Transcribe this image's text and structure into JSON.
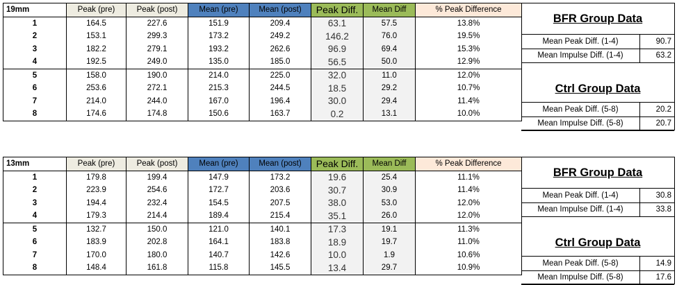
{
  "headers": [
    "Peak (pre)",
    "Peak (post)",
    "Mean (pre)",
    "Mean (post)",
    "Peak Diff.",
    "Mean Diff",
    "% Peak Difference"
  ],
  "tables": [
    {
      "label": "19mm",
      "rows": [
        [
          "1",
          "164.5",
          "227.6",
          "151.9",
          "209.4",
          "63.1",
          "57.5",
          "13.8%"
        ],
        [
          "2",
          "153.1",
          "299.3",
          "173.2",
          "249.2",
          "146.2",
          "76.0",
          "19.5%"
        ],
        [
          "3",
          "182.2",
          "279.1",
          "193.2",
          "262.6",
          "96.9",
          "69.4",
          "15.3%"
        ],
        [
          "4",
          "192.5",
          "249.0",
          "135.0",
          "185.0",
          "56.5",
          "50.0",
          "12.9%"
        ],
        [
          "5",
          "158.0",
          "190.0",
          "214.0",
          "225.0",
          "32.0",
          "11.0",
          "12.0%"
        ],
        [
          "6",
          "253.6",
          "272.1",
          "215.3",
          "244.5",
          "18.5",
          "29.2",
          "10.7%"
        ],
        [
          "7",
          "214.0",
          "244.0",
          "167.0",
          "196.4",
          "30.0",
          "29.4",
          "11.4%"
        ],
        [
          "8",
          "174.6",
          "174.8",
          "150.6",
          "163.7",
          "0.2",
          "13.1",
          "10.0%"
        ]
      ],
      "bfr": {
        "title": "BFR Group Data",
        "peak_label": "Mean Peak Diff. (1-4)",
        "peak_value": "90.7",
        "impulse_label": "Mean Impulse Diff. (1-4)",
        "impulse_value": "63.2"
      },
      "ctrl": {
        "title": "Ctrl Group Data",
        "peak_label": "Mean Peak  Diff. (5-8)",
        "peak_value": "20.2",
        "impulse_label": "Mean Impulse Diff. (5-8)",
        "impulse_value": "20.7"
      }
    },
    {
      "label": "13mm",
      "rows": [
        [
          "1",
          "179.8",
          "199.4",
          "147.9",
          "173.2",
          "19.6",
          "25.4",
          "11.1%"
        ],
        [
          "2",
          "223.9",
          "254.6",
          "172.7",
          "203.6",
          "30.7",
          "30.9",
          "11.4%"
        ],
        [
          "3",
          "194.4",
          "232.4",
          "154.5",
          "207.5",
          "38.0",
          "53.0",
          "12.0%"
        ],
        [
          "4",
          "179.3",
          "214.4",
          "189.4",
          "215.4",
          "35.1",
          "26.0",
          "12.0%"
        ],
        [
          "5",
          "132.7",
          "150.0",
          "121.0",
          "140.1",
          "17.3",
          "19.1",
          "11.3%"
        ],
        [
          "6",
          "183.9",
          "202.8",
          "164.1",
          "183.8",
          "18.9",
          "19.7",
          "11.0%"
        ],
        [
          "7",
          "170.0",
          "180.0",
          "140.7",
          "142.6",
          "10.0",
          "1.9",
          "10.6%"
        ],
        [
          "8",
          "148.4",
          "161.8",
          "115.8",
          "145.5",
          "13.4",
          "29.7",
          "10.9%"
        ]
      ],
      "bfr": {
        "title": "BFR Group Data",
        "peak_label": "Mean Peak  Diff. (1-4)",
        "peak_value": "30.8",
        "impulse_label": "Mean Impulse Diff. (1-4)",
        "impulse_value": "33.8"
      },
      "ctrl": {
        "title": "Ctrl Group Data",
        "peak_label": "Mean Peak  Diff. (5-8)",
        "peak_value": "14.9",
        "impulse_label": "Mean Impulse Diff. (5-8)",
        "impulse_value": "17.6"
      }
    }
  ]
}
